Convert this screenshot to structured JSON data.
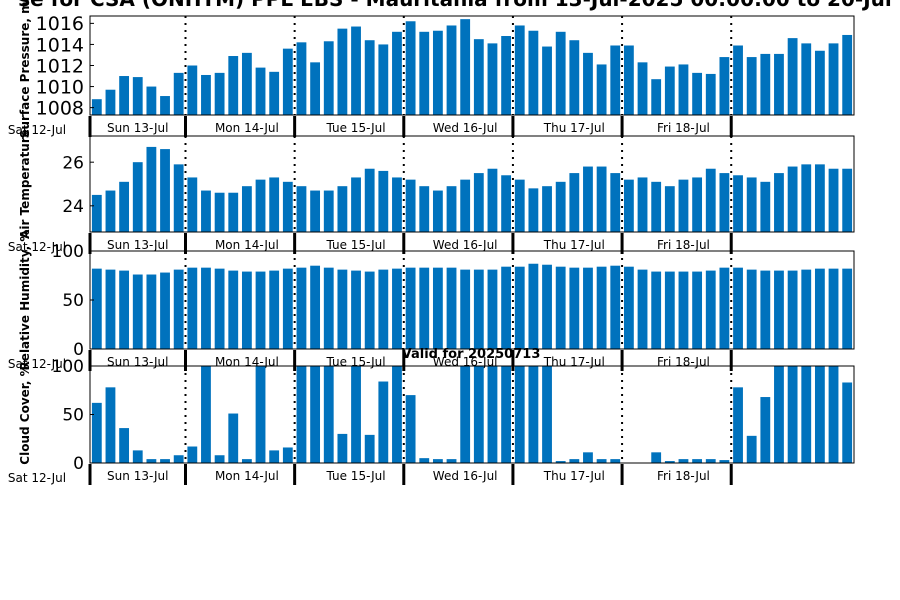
{
  "figure": {
    "title": "se for CSA (ONHTM) PPL EBS  - Mauritania from 13-Jul-2025 00:00:00 to 20-Jul",
    "valid_label": "Valid for 20250713",
    "bar_color": "#0072bd",
    "day_labels": [
      "Sat 12-Jul",
      "Sun 13-Jul",
      "Mon 14-Jul",
      "Tue 15-Jul",
      "Wed 16-Jul",
      "Thu 17-Jul",
      "Fri 18-Jul"
    ]
  },
  "chart_data": [
    {
      "type": "bar",
      "name": "pressure",
      "ylabel": "Surface Pressure, mb",
      "ylim": [
        1007.3,
        1016.7
      ],
      "yticks": [
        1008,
        1010,
        1012,
        1014,
        1016
      ],
      "values": [
        1008.8,
        1009.7,
        1011.0,
        1010.9,
        1010.0,
        1009.1,
        1011.3,
        1012.0,
        1011.1,
        1011.3,
        1012.9,
        1013.2,
        1011.8,
        1011.4,
        1013.6,
        1014.2,
        1012.3,
        1014.3,
        1015.5,
        1015.7,
        1014.4,
        1014.0,
        1015.2,
        1016.2,
        1015.2,
        1015.3,
        1015.8,
        1016.4,
        1014.5,
        1014.1,
        1014.8,
        1015.8,
        1015.3,
        1013.8,
        1015.2,
        1014.4,
        1013.2,
        1012.1,
        1013.9,
        1013.9,
        1012.3,
        1010.7,
        1011.9,
        1012.1,
        1011.3,
        1011.2,
        1012.8,
        1013.9,
        1012.8,
        1013.1,
        1013.1,
        1014.6,
        1014.1,
        1013.4,
        1014.1,
        1014.9
      ]
    },
    {
      "type": "bar",
      "name": "temperature",
      "ylabel": "Air Temperature",
      "ylim": [
        22.8,
        27.2
      ],
      "yticks": [
        24,
        26
      ],
      "values": [
        24.5,
        24.7,
        25.1,
        26.0,
        26.7,
        26.6,
        25.9,
        25.3,
        24.7,
        24.6,
        24.6,
        24.9,
        25.2,
        25.3,
        25.1,
        24.9,
        24.7,
        24.7,
        24.9,
        25.3,
        25.7,
        25.6,
        25.3,
        25.2,
        24.9,
        24.7,
        24.9,
        25.2,
        25.5,
        25.7,
        25.4,
        25.2,
        24.8,
        24.9,
        25.1,
        25.5,
        25.8,
        25.8,
        25.5,
        25.2,
        25.3,
        25.1,
        24.9,
        25.2,
        25.3,
        25.7,
        25.5,
        25.4,
        25.3,
        25.1,
        25.5,
        25.8,
        25.9,
        25.9,
        25.7,
        25.7
      ]
    },
    {
      "type": "bar",
      "name": "humidity",
      "ylabel": "Relative Humidity, %",
      "ylim": [
        0,
        100
      ],
      "yticks": [
        0,
        50,
        100
      ],
      "values": [
        82,
        81,
        80,
        76,
        76,
        78,
        81,
        83,
        83,
        82,
        80,
        79,
        79,
        80,
        82,
        83,
        85,
        83,
        81,
        80,
        79,
        81,
        82,
        83,
        83,
        83,
        83,
        81,
        81,
        81,
        84,
        84,
        87,
        86,
        84,
        83,
        83,
        84,
        85,
        84,
        81,
        79,
        79,
        79,
        79,
        80,
        83,
        83,
        81,
        80,
        80,
        80,
        81,
        82,
        82,
        82
      ]
    },
    {
      "type": "bar",
      "name": "cloud",
      "ylabel": "Cloud Cover, %",
      "ylim": [
        0,
        100
      ],
      "yticks": [
        0,
        50,
        100
      ],
      "values": [
        62,
        78,
        36,
        13,
        4,
        4,
        8,
        17,
        100,
        8,
        51,
        4,
        100,
        13,
        16,
        100,
        100,
        100,
        30,
        100,
        29,
        84,
        100,
        70,
        5,
        4,
        4,
        100,
        100,
        100,
        100,
        100,
        100,
        100,
        2,
        4,
        11,
        4,
        4,
        0,
        0,
        11,
        2,
        4,
        4,
        4,
        3,
        78,
        28,
        68,
        100,
        100,
        100,
        100,
        100,
        83
      ]
    }
  ]
}
